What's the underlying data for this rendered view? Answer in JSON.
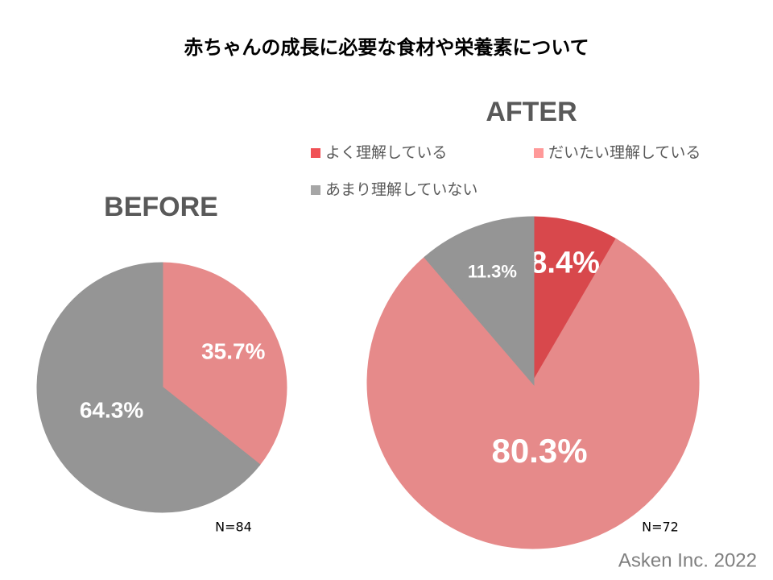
{
  "title": "赤ちゃんの成長に必要な食材や栄養素について",
  "credit": "Asken Inc. 2022",
  "chart_data": [
    {
      "type": "pie",
      "title": "BEFORE",
      "note": "N=84",
      "values": [
        35.7,
        64.3
      ],
      "value_labels": [
        "35.7%",
        "64.3%"
      ],
      "colors": [
        "#ff9999",
        "#a6a6a6"
      ]
    },
    {
      "type": "pie",
      "title": "AFTER",
      "note": "N=72",
      "categories": [
        "よく理解している",
        "だいたい理解している",
        "あまり理解していない"
      ],
      "values": [
        8.4,
        80.3,
        11.3
      ],
      "value_labels": [
        "8.4%",
        "80.3%",
        "11.3%"
      ],
      "colors": [
        "#f05055",
        "#ff9999",
        "#a6a6a6"
      ]
    }
  ]
}
